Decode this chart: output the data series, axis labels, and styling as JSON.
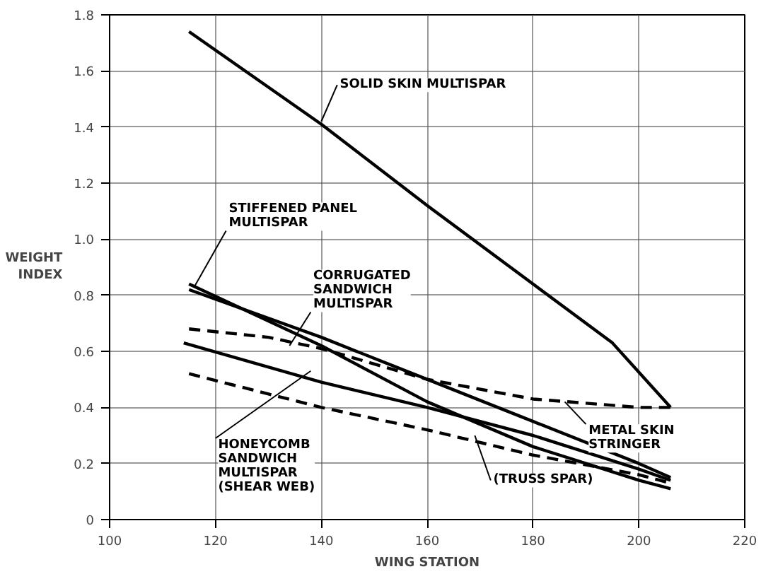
{
  "chart_data": {
    "type": "line",
    "xlabel": "WING STATION",
    "ylabel": "WEIGHT\nINDEX",
    "xlim": [
      100,
      220
    ],
    "ylim": [
      0,
      1.8
    ],
    "xticks": [
      100,
      120,
      140,
      160,
      180,
      200,
      220
    ],
    "yticks": [
      0,
      0.2,
      0.4,
      0.6,
      0.8,
      {
        "value": 1,
        "label": "1.0"
      },
      1.2,
      1.4,
      1.6,
      1.8
    ],
    "grid": true,
    "marker": "none",
    "series": [
      {
        "color": "#000000",
        "line_style": "solid",
        "x": [
          115,
          140,
          160,
          180,
          195,
          206
        ],
        "values": [
          1.74,
          1.41,
          1.12,
          0.84,
          0.63,
          0.4
        ]
      },
      {
        "color": "#000000",
        "line_style": "solid",
        "x": [
          115,
          140,
          160,
          180,
          200,
          206
        ],
        "values": [
          0.84,
          0.62,
          0.42,
          0.26,
          0.14,
          0.11
        ]
      },
      {
        "color": "#000000",
        "line_style": "solid",
        "x": [
          115,
          140,
          160,
          180,
          200,
          206
        ],
        "values": [
          0.82,
          0.65,
          0.5,
          0.35,
          0.2,
          0.15
        ]
      },
      {
        "color": "#000000",
        "line_style": "dashed",
        "x": [
          115,
          130,
          140,
          160,
          180,
          200,
          206
        ],
        "values": [
          0.68,
          0.65,
          0.61,
          0.5,
          0.43,
          0.4,
          0.4
        ]
      },
      {
        "color": "#000000",
        "line_style": "solid",
        "x": [
          114,
          140,
          160,
          180,
          200,
          206
        ],
        "values": [
          0.63,
          0.49,
          0.4,
          0.3,
          0.18,
          0.14
        ]
      },
      {
        "color": "#000000",
        "line_style": "dashed",
        "x": [
          115,
          140,
          160,
          180,
          200,
          206
        ],
        "values": [
          0.52,
          0.4,
          0.32,
          0.23,
          0.16,
          0.13
        ]
      }
    ],
    "annotations": [
      {
        "text": "SOLID SKIN MULTISPAR",
        "x": 140,
        "y": 1.42
      },
      {
        "text": "STIFFENED PANEL\nMULTISPAR",
        "x": 116,
        "y": 0.83
      },
      {
        "text": "CORRUGATED\nSANDWICH\nMULTISPAR",
        "x": 134,
        "y": 0.62
      },
      {
        "text": "METAL SKIN\nSTRINGER",
        "x": 186,
        "y": 0.42
      },
      {
        "text": "HONEYCOMB\nSANDWICH\nMULTISPAR\n(SHEAR WEB)",
        "x": 138,
        "y": 0.53
      },
      {
        "text": "(TRUSS SPAR)",
        "x": 169,
        "y": 0.3
      }
    ]
  }
}
